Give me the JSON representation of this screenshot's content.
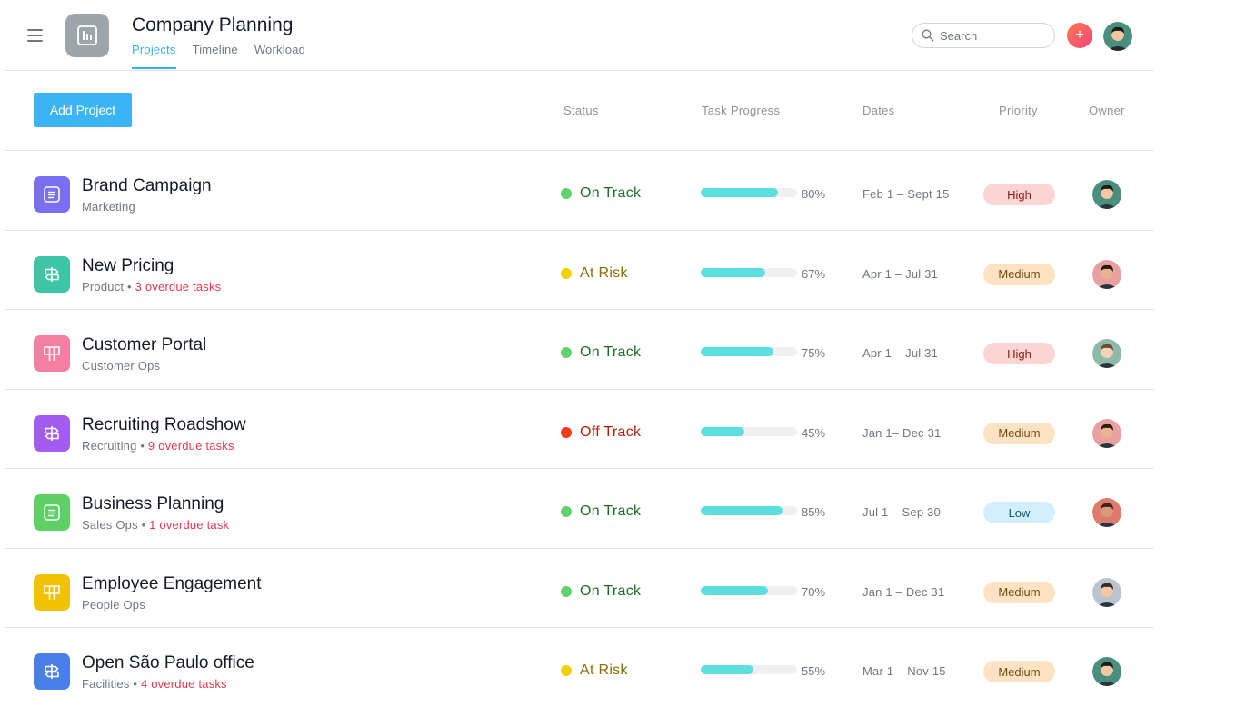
{
  "header": {
    "title": "Company Planning",
    "tabs": [
      {
        "label": "Projects",
        "active": true
      },
      {
        "label": "Timeline",
        "active": false
      },
      {
        "label": "Workload",
        "active": false
      }
    ],
    "search_placeholder": "Search",
    "add_symbol": "+"
  },
  "toolbar": {
    "add_project_label": "Add Project"
  },
  "columns": {
    "status": "Status",
    "progress": "Task Progress",
    "dates": "Dates",
    "priority": "Priority",
    "owner": "Owner"
  },
  "colors": {
    "accent": "#3ab4f2",
    "on_track": "#62d26f",
    "at_risk": "#f5d000",
    "off_track": "#f03c1c",
    "progress": "#5ddfe0",
    "overdue": "#e8384f"
  },
  "projects": [
    {
      "name": "Brand Campaign",
      "team": "Marketing",
      "overdue": "",
      "icon": "list-icon",
      "icon_color": "#7a6ff0",
      "status": "On Track",
      "status_key": "on_track",
      "progress": 80,
      "progress_label": "80%",
      "dates": "Feb 1 – Sept 15",
      "priority": "High",
      "priority_key": "high",
      "owner_skin": "#f1c7a4",
      "owner_hair": "#1c1c1c",
      "owner_bg": "#4a8e7d"
    },
    {
      "name": "New Pricing",
      "team": "Product",
      "overdue": "3 overdue tasks",
      "icon": "signpost-icon",
      "icon_color": "#3ec5a6",
      "status": "At Risk",
      "status_key": "at_risk",
      "progress": 67,
      "progress_label": "67%",
      "dates": "Apr 1 – Jul 31",
      "priority": "Medium",
      "priority_key": "medium",
      "owner_skin": "#e9b48f",
      "owner_hair": "#2a1a12",
      "owner_bg": "#e8a0a0"
    },
    {
      "name": "Customer Portal",
      "team": "Customer Ops",
      "overdue": "",
      "icon": "board-icon",
      "icon_color": "#f57fa3",
      "status": "On Track",
      "status_key": "on_track",
      "progress": 75,
      "progress_label": "75%",
      "dates": "Apr 1 – Jul 31",
      "priority": "High",
      "priority_key": "high",
      "owner_skin": "#f3d2b6",
      "owner_hair": "#6b4a2f",
      "owner_bg": "#8fb9a8"
    },
    {
      "name": "Recruiting Roadshow",
      "team": "Recruiting",
      "overdue": "9 overdue tasks",
      "icon": "signpost-icon",
      "icon_color": "#a35cf0",
      "status": "Off Track",
      "status_key": "off_track",
      "progress": 45,
      "progress_label": "45%",
      "dates": "Jan 1– Dec 31",
      "priority": "Medium",
      "priority_key": "medium",
      "owner_skin": "#e9b48f",
      "owner_hair": "#2a1a12",
      "owner_bg": "#e8a0a0"
    },
    {
      "name": "Business Planning",
      "team": "Sales Ops",
      "overdue": "1 overdue task",
      "icon": "list-icon",
      "icon_color": "#5fd065",
      "status": "On Track",
      "status_key": "on_track",
      "progress": 85,
      "progress_label": "85%",
      "dates": "Jul 1 – Sep 30",
      "priority": "Low",
      "priority_key": "low",
      "owner_skin": "#d99a7a",
      "owner_hair": "#3a2418",
      "owner_bg": "#e07a6c"
    },
    {
      "name": "Employee Engagement",
      "team": "People Ops",
      "overdue": "",
      "icon": "board-icon",
      "icon_color": "#f2c200",
      "status": "On Track",
      "status_key": "on_track",
      "progress": 70,
      "progress_label": "70%",
      "dates": "Jan 1 – Dec 31",
      "priority": "Medium",
      "priority_key": "medium",
      "owner_skin": "#f1c7a4",
      "owner_hair": "#3b2c22",
      "owner_bg": "#b9c4cf"
    },
    {
      "name": "Open São Paulo office",
      "team": "Facilities",
      "overdue": "4 overdue tasks",
      "icon": "signpost-icon",
      "icon_color": "#4a7ee8",
      "status": "At Risk",
      "status_key": "at_risk",
      "progress": 55,
      "progress_label": "55%",
      "dates": "Mar 1 – Nov 15",
      "priority": "Medium",
      "priority_key": "medium",
      "owner_skin": "#f1c7a4",
      "owner_hair": "#1c1c1c",
      "owner_bg": "#4a8e7d"
    }
  ]
}
